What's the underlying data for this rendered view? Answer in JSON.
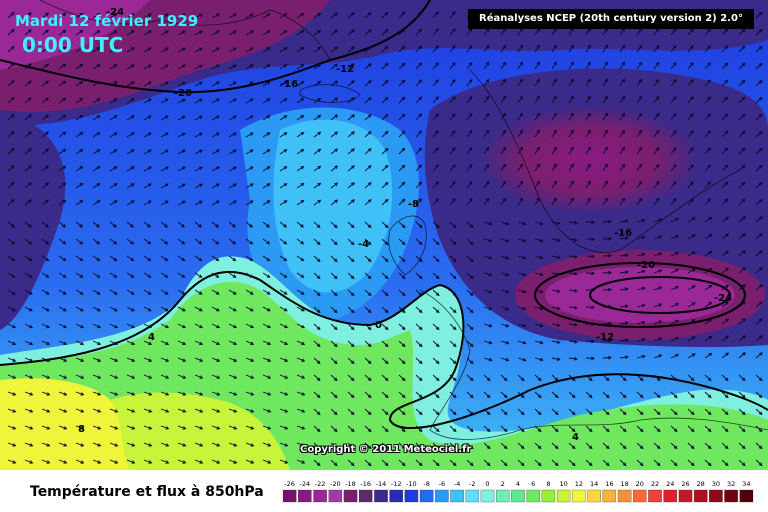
{
  "header": {
    "date": "Mardi 12 février 1929",
    "time": "0:00 UTC",
    "source": "Réanalyses NCEP (20th century version 2) 2.0°"
  },
  "map": {
    "copyright": "Copyright © 2011 Meteociel.fr",
    "isotherm_labels": [
      "-24",
      "-20",
      "-16",
      "-12",
      "-8",
      "-4",
      "0",
      "4",
      "8",
      "-12",
      "-16",
      "-20",
      "-24",
      "4"
    ],
    "land_outline_color": "#000000"
  },
  "footer": {
    "title": "Température et flux à 850hPa"
  },
  "legend": {
    "values": [
      "-26",
      "-24",
      "-22",
      "-20",
      "-18",
      "-16",
      "-14",
      "-12",
      "-10",
      "-8",
      "-6",
      "-4",
      "-2",
      "0",
      "2",
      "4",
      "6",
      "8",
      "10",
      "12",
      "14",
      "16",
      "18",
      "20",
      "22",
      "24",
      "26",
      "28",
      "30",
      "32",
      "34"
    ],
    "colors": [
      "#7a0f6e",
      "#8a1a82",
      "#9a2896",
      "#a03aa6",
      "#7a1f6e",
      "#5a2a6a",
      "#3a2a8a",
      "#2a2ab4",
      "#1f3be0",
      "#1f6cf2",
      "#2a9af4",
      "#3fc0f6",
      "#5fe0f8",
      "#7ff0e0",
      "#6ef0b0",
      "#5fe890",
      "#6fe860",
      "#96ee3a",
      "#c8f43a",
      "#f0f43a",
      "#f8d83a",
      "#f8b43a",
      "#f8903a",
      "#f8683a",
      "#f0403a",
      "#e02030",
      "#c81828",
      "#b01020",
      "#900818",
      "#700010",
      "#500008"
    ]
  }
}
